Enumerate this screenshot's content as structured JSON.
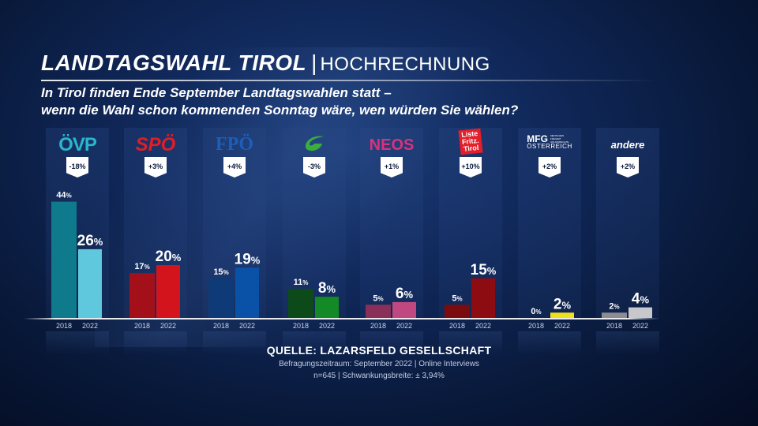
{
  "header": {
    "title": "LANDTAGSWAHL TIROL",
    "separator": "|",
    "subtitle": "HOCHRECHNUNG",
    "question_line1": "In Tirol finden Ende September Landtagswahlen statt –",
    "question_line2": "wenn die Wahl schon kommenden Sonntag wäre, wen würden Sie wählen?"
  },
  "chart_data": {
    "type": "bar",
    "categories": [
      "ÖVP",
      "SPÖ",
      "FPÖ",
      "Grüne",
      "NEOS",
      "Liste Fritz",
      "MFG",
      "andere"
    ],
    "years": [
      "2018",
      "2022"
    ],
    "series": [
      {
        "name": "2018",
        "values": [
          44,
          17,
          15,
          11,
          5,
          5,
          0,
          2
        ]
      },
      {
        "name": "2022",
        "values": [
          26,
          20,
          19,
          8,
          6,
          15,
          2,
          4
        ]
      }
    ],
    "labels_2018": [
      "44",
      "17",
      "15",
      "11",
      "5",
      "5",
      "0",
      "2"
    ],
    "labels_2022": [
      "26",
      "20",
      "19",
      "8",
      "6",
      "15",
      "2",
      "4"
    ],
    "unit": "%",
    "changes": [
      "-18%",
      "+3%",
      "+4%",
      "-3%",
      "+1%",
      "+10%",
      "+2%",
      "+2%"
    ],
    "colors_2018": [
      "#0e7a8c",
      "#a3101a",
      "#0f3a78",
      "#0d4a1a",
      "#8a2f58",
      "#7a0c10",
      "#8a8a20",
      "#8c8c94"
    ],
    "colors_2022": [
      "#5fc8dc",
      "#d4141c",
      "#0a52a8",
      "#138a26",
      "#c04880",
      "#8c0c12",
      "#f0e020",
      "#c8c8cc"
    ],
    "ylim": [
      0,
      50
    ],
    "grid": false,
    "legend": "none"
  },
  "logos": {
    "ovp": "ÖVP",
    "spo": "SPÖ",
    "fpo": "FPÖ",
    "neos": "NEOS",
    "liste_fritz": [
      "Liste",
      "Fritz.",
      "Tirol"
    ],
    "mfg_main": "MFG",
    "mfg_small": [
      "MENSCHEN",
      "FREIHEIT",
      "GRUNDRECHTE"
    ],
    "mfg_sub": "ÖSTERREICH",
    "andere": "andere",
    "green_icon": "gruene-leaf-icon"
  },
  "source": {
    "title": "QUELLE:  LAZARSFELD GESELLSCHAFT",
    "line1": "Befragungszeitraum: September 2022 | Online Interviews",
    "line2": "n=645 |  Schwankungsbreite: ± 3,94%"
  }
}
